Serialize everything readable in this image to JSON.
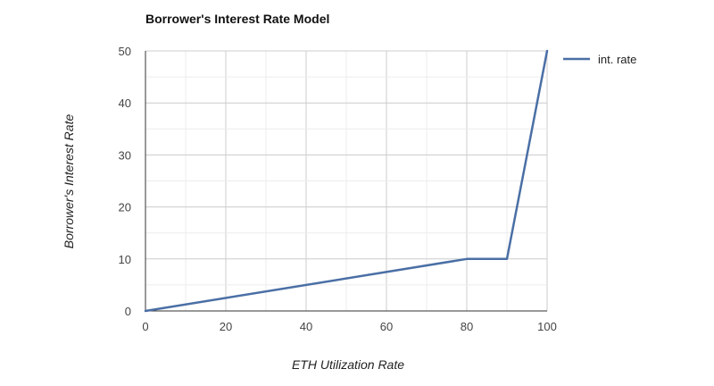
{
  "chart_data": {
    "type": "line",
    "title": "Borrower's Interest Rate Model",
    "xlabel": "ETH Utilization Rate",
    "ylabel": "Borrower's Interest Rate",
    "xlim": [
      0,
      100
    ],
    "ylim": [
      0,
      50
    ],
    "x_ticks": [
      "0",
      "20",
      "40",
      "60",
      "80",
      "100"
    ],
    "y_ticks": [
      "0",
      "10",
      "20",
      "30",
      "40",
      "50"
    ],
    "grid": true,
    "legend_position": "right",
    "series": [
      {
        "name": "int. rate",
        "color": "#4a6fa5",
        "x": [
          0,
          80,
          90,
          100
        ],
        "y": [
          0,
          10,
          10,
          50
        ]
      }
    ]
  }
}
